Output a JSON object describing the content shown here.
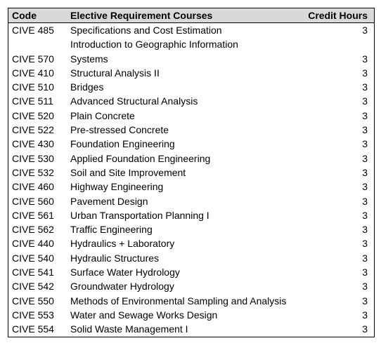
{
  "table": {
    "header": [
      "Code",
      "Elective Requirement Courses",
      "Credit Hours"
    ],
    "rows": [
      [
        "CIVE 485",
        "Specifications and Cost Estimation",
        "3"
      ],
      [
        "CIVE 570",
        [
          "Introduction to Geographic Information",
          "Systems"
        ],
        "3"
      ],
      [
        "CIVE 410",
        "Structural Analysis II",
        "3"
      ],
      [
        "CIVE 510",
        "Bridges",
        "3"
      ],
      [
        "CIVE 511",
        "Advanced Structural Analysis",
        "3"
      ],
      [
        "CIVE 520",
        "Plain Concrete",
        "3"
      ],
      [
        "CIVE 522",
        "Pre-stressed Concrete",
        "3"
      ],
      [
        "CIVE 430",
        "Foundation Engineering",
        "3"
      ],
      [
        "CIVE 530",
        "Applied Foundation Engineering",
        "3"
      ],
      [
        "CIVE 532",
        "Soil and Site Improvement",
        "3"
      ],
      [
        "CIVE 460",
        "Highway Engineering",
        "3"
      ],
      [
        "CIVE 560",
        "Pavement Design",
        "3"
      ],
      [
        "CIVE 561",
        "Urban Transportation Planning I",
        "3"
      ],
      [
        "CIVE 562",
        "Traffic Engineering",
        "3"
      ],
      [
        "CIVE 440",
        "Hydraulics + Laboratory",
        "3"
      ],
      [
        "CIVE 540",
        "Hydraulic Structures",
        "3"
      ],
      [
        "CIVE 541",
        "Surface Water Hydrology",
        "3"
      ],
      [
        "CIVE 542",
        "Groundwater Hydrology",
        "3"
      ],
      [
        "CIVE 550",
        "Methods of Environmental Sampling and Analysis",
        "3"
      ],
      [
        "CIVE 553",
        "Water and Sewage Works Design",
        "3"
      ],
      [
        "CIVE 554",
        "Solid Waste Management I",
        "3"
      ]
    ]
  }
}
